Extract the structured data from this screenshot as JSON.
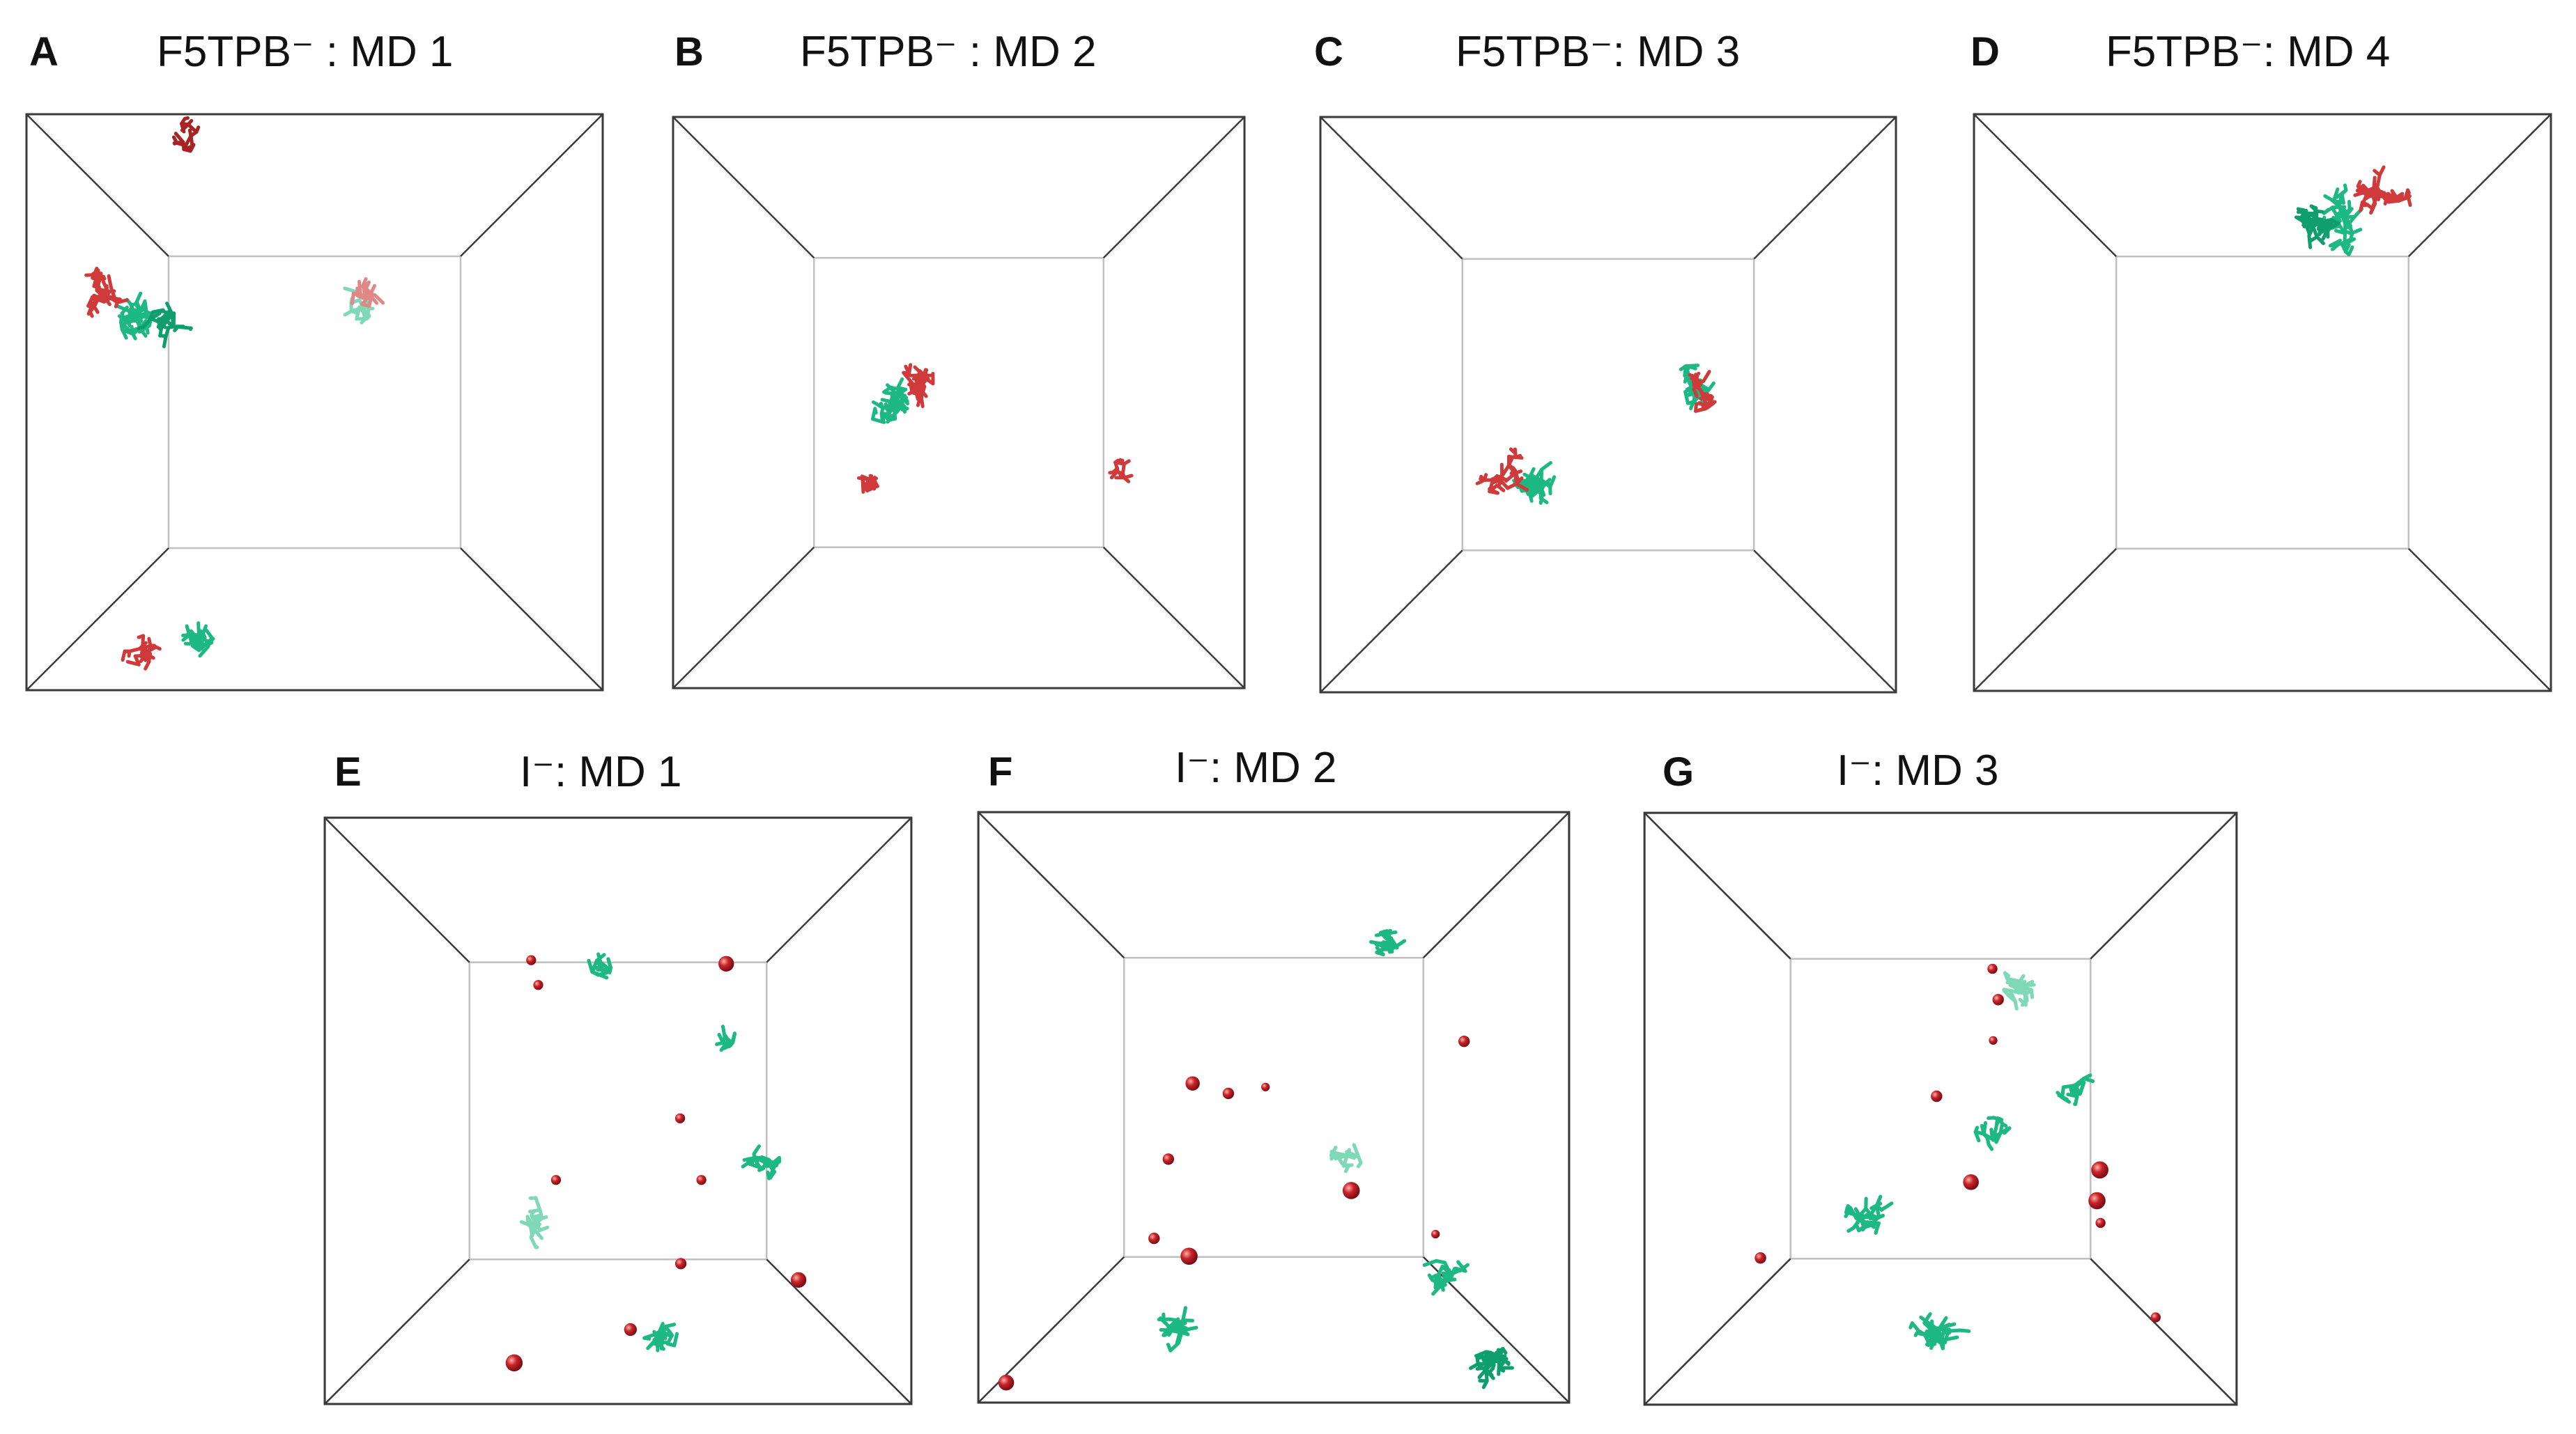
{
  "figure": {
    "panels": [
      {
        "letter": "A",
        "title": "F5TPB⁻ : MD 1"
      },
      {
        "letter": "B",
        "title": "F5TPB⁻ : MD 2"
      },
      {
        "letter": "C",
        "title": "F5TPB⁻: MD 3"
      },
      {
        "letter": "D",
        "title": "F5TPB⁻: MD 4"
      },
      {
        "letter": "E",
        "title": "I⁻: MD 1"
      },
      {
        "letter": "F",
        "title": "I⁻: MD 2"
      },
      {
        "letter": "G",
        "title": "I⁻: MD 3"
      }
    ],
    "colors": {
      "cation_green": "#1db884",
      "cation_green_dark": "#0f9e6e",
      "anion_red": "#d03a3a",
      "anion_red_dark": "#a82424",
      "iodide_sphere": "#c8242a",
      "box_outer": "#3a3a3a",
      "box_inner": "#c0c0c0"
    }
  }
}
